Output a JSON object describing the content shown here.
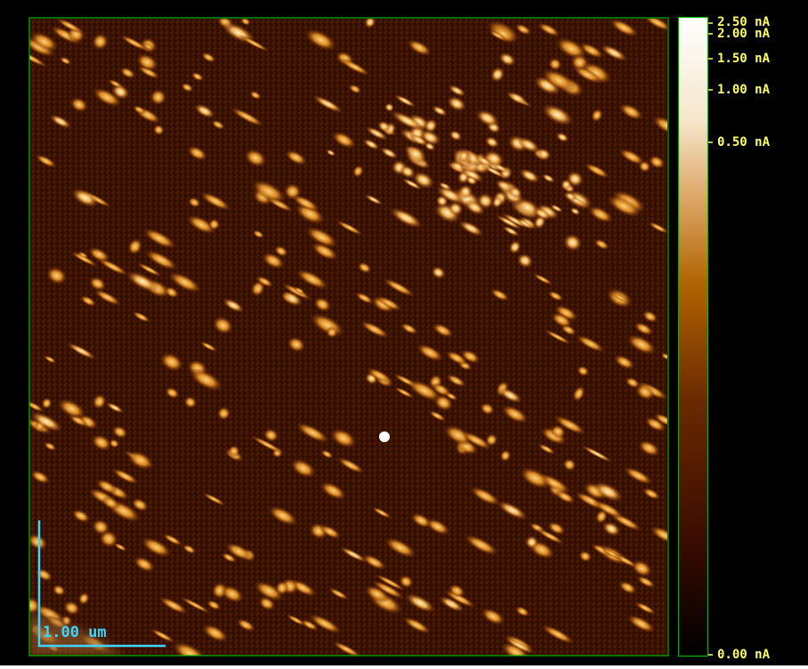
{
  "image": {
    "description_color": {
      "frame_border": "#00b800",
      "background": "#000000",
      "label_color": "#ffff66",
      "scalebar_color": "#3fd4ff"
    },
    "scale_bar": {
      "label": "1.00 um"
    }
  },
  "colorbar": {
    "ticks": [
      {
        "label": "2.50 nA"
      },
      {
        "label": "2.00 nA"
      },
      {
        "label": "1.50 nA"
      },
      {
        "label": "1.00 nA"
      },
      {
        "label": "0.50 nA"
      },
      {
        "label": "0.00 nA"
      }
    ],
    "gradient_colors": [
      "#2a0600",
      "#5a1a00",
      "#a85a00",
      "#e2a050",
      "#f8e6c8",
      "#ffffff"
    ]
  }
}
